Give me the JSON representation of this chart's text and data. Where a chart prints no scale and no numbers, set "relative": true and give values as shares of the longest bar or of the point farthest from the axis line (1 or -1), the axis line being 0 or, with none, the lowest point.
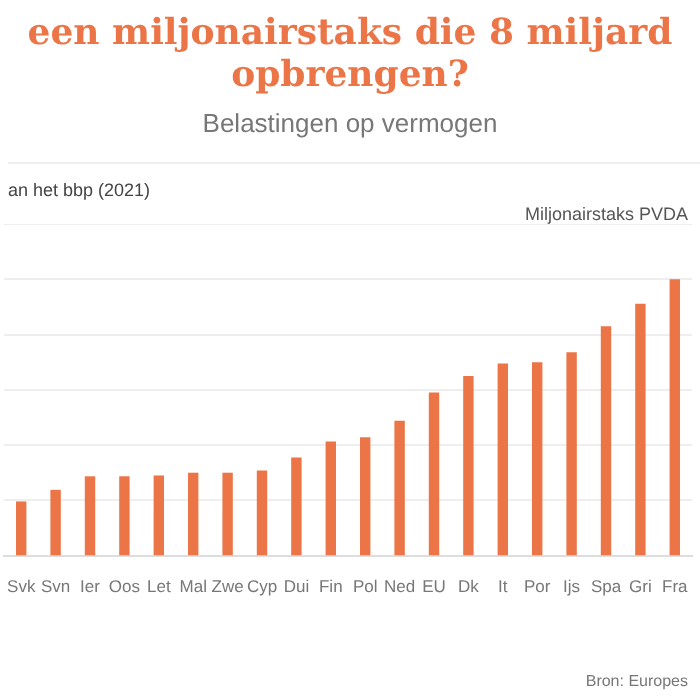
{
  "chart_data": {
    "type": "bar",
    "title": "een miljonairstaks die 8 miljard opbrengen?",
    "subtitle": "Belastingen op vermogen",
    "ylabel": "an het bbp (2021)",
    "categories": [
      "Svk",
      "Svn",
      "Ier",
      "Oos",
      "Let",
      "Mal",
      "Zwe",
      "Cyp",
      "Dui",
      "Fin",
      "Pol",
      "Ned",
      "EU",
      "Dk",
      "It",
      "Por",
      "Ijs",
      "Spa",
      "Gri",
      "Fra"
    ],
    "values": [
      0.196,
      0.238,
      0.287,
      0.287,
      0.29,
      0.3,
      0.3,
      0.308,
      0.355,
      0.413,
      0.428,
      0.488,
      0.59,
      0.65,
      0.695,
      0.7,
      0.736,
      0.83,
      0.911,
      1
    ],
    "color": "#ec7548",
    "relative": true,
    "grid": "y",
    "annotations": [
      "Miljonairstaks PVDA",
      "Bron: Europes"
    ]
  }
}
